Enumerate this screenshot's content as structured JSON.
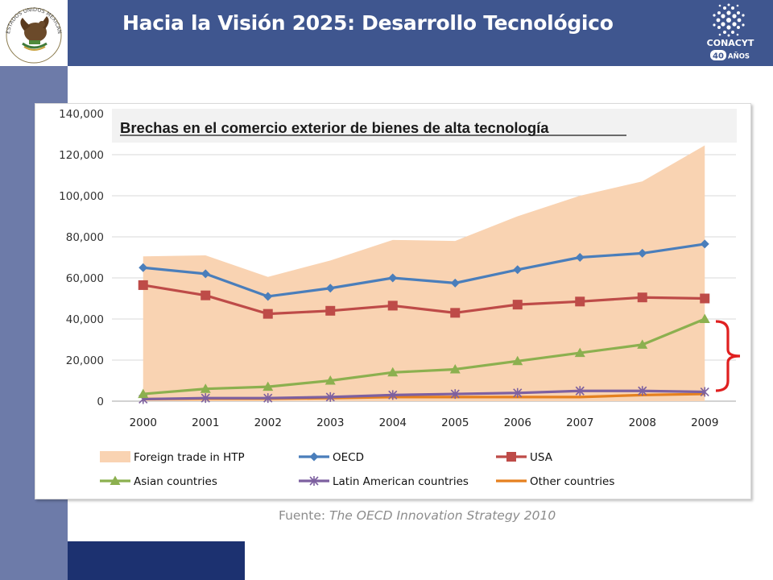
{
  "header": {
    "title": "Hacia la Visión 2025: Desarrollo Tecnológico",
    "seal_text": "ESTADOS UNIDOS MEXICANOS",
    "logo_name": "CONACYT",
    "logo_years": "40",
    "logo_suffix": "AÑOS"
  },
  "colors": {
    "header_bg": "#3f568f",
    "sidebar": "#6d7ba9",
    "bottom_bar": "#1c3170",
    "area": "#f9d3b2",
    "oecd": "#4a7ebb",
    "usa": "#be4b48",
    "asian": "#8cb04f",
    "latin": "#7d60a0",
    "other": "#e5801f",
    "bracket": "#e02020"
  },
  "chart_data": {
    "type": "line",
    "title": "Brechas en el comercio exterior de bienes de alta tecnología",
    "categories": [
      "2000",
      "2001",
      "2002",
      "2003",
      "2004",
      "2005",
      "2006",
      "2007",
      "2008",
      "2009"
    ],
    "ylim": [
      0,
      140000
    ],
    "yticks": [
      "0",
      "20,000",
      "40,000",
      "60,000",
      "80,000",
      "100,000",
      "120,000",
      "140,000"
    ],
    "grid": true,
    "legend_position": "bottom",
    "series": [
      {
        "name": "Foreign trade in HTP",
        "kind": "area",
        "values": [
          70500,
          71000,
          60500,
          68500,
          78500,
          78000,
          90000,
          100000,
          107000,
          124500
        ]
      },
      {
        "name": "OECD",
        "kind": "line",
        "marker": "diamond",
        "values": [
          65000,
          62000,
          51000,
          55000,
          60000,
          57500,
          64000,
          70000,
          72000,
          76500
        ]
      },
      {
        "name": "USA",
        "kind": "line",
        "marker": "square",
        "values": [
          56500,
          51500,
          42500,
          44000,
          46500,
          43000,
          47000,
          48500,
          50500,
          50000
        ]
      },
      {
        "name": "Asian countries",
        "kind": "line",
        "marker": "triangle",
        "values": [
          3500,
          6000,
          7000,
          10000,
          14000,
          15500,
          19500,
          23500,
          27500,
          40000
        ]
      },
      {
        "name": "Latin American countries",
        "kind": "line",
        "marker": "x",
        "values": [
          1000,
          1500,
          1500,
          2000,
          3000,
          3500,
          4000,
          5000,
          5000,
          4500
        ]
      },
      {
        "name": "Other countries",
        "kind": "line",
        "marker": "none",
        "values": [
          1000,
          1200,
          1200,
          1500,
          2000,
          2000,
          2000,
          2000,
          3000,
          3500
        ]
      }
    ]
  },
  "footer": {
    "source_prefix": "Fuente: ",
    "source_title": "The OECD Innovation Strategy 2010"
  }
}
